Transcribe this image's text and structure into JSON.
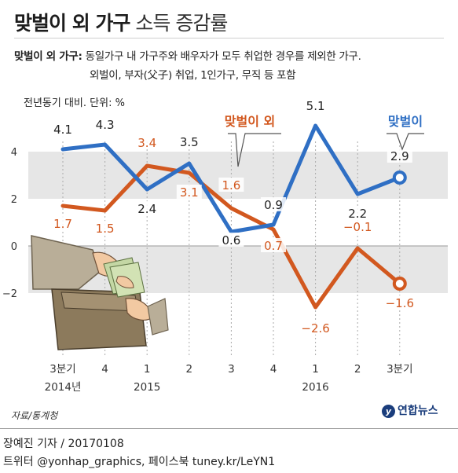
{
  "header": {
    "title_bold": "맞벌이 외 가구",
    "title_light": "소득 증감률"
  },
  "notes": {
    "label": "맞벌이 외 가구:",
    "line1": "동일가구 내 가구주와 배우자가 모두 취업한 경우를 제외한 가구.",
    "line2": "외벌이, 부자(父子) 취업, 1인가구, 무직 등 포함"
  },
  "unit_label": "전년동기 대비. 단위: %",
  "chart_data": {
    "type": "line",
    "title": "맞벌이 외 가구 소득 증감률",
    "categories": [
      "3분기",
      "4",
      "1",
      "2",
      "3",
      "4",
      "1",
      "2",
      "3분기"
    ],
    "year_labels": [
      {
        "label": "2014년",
        "at_index": 0
      },
      {
        "label": "2015",
        "at_index": 2
      },
      {
        "label": "2016",
        "at_index": 6
      }
    ],
    "ylim": [
      -3.1,
      5.0
    ],
    "yticks": [
      4,
      2,
      0,
      -2
    ],
    "grid": true,
    "series": [
      {
        "name": "맞벌이",
        "color": "#2f6fc4",
        "values": [
          4.1,
          4.3,
          2.4,
          3.5,
          0.6,
          0.9,
          5.1,
          2.2,
          2.9
        ],
        "labels": [
          "4.1",
          "4.3",
          "2.4",
          "3.5",
          "0.6",
          "0.9",
          "5.1",
          "2.2",
          "2.9"
        ]
      },
      {
        "name": "맞벌이 외",
        "color": "#d2581f",
        "values": [
          1.7,
          1.5,
          3.4,
          3.1,
          1.6,
          0.7,
          -2.6,
          -0.1,
          -1.6
        ],
        "labels": [
          "1.7",
          "1.5",
          "3.4",
          "3.1",
          "1.6",
          "0.7",
          "−2.6",
          "−0.1",
          "−1.6"
        ]
      }
    ]
  },
  "source": "자료/통계청",
  "logo_text": "연합뉴스",
  "byline": {
    "line1": "장예진 기자 / 20170108",
    "line2": "트위터 @yonhap_graphics, 페이스북 tuney.kr/LeYN1"
  },
  "colors": {
    "blue": "#2f6fc4",
    "orange": "#d2581f",
    "band": "#e6e6e6"
  }
}
